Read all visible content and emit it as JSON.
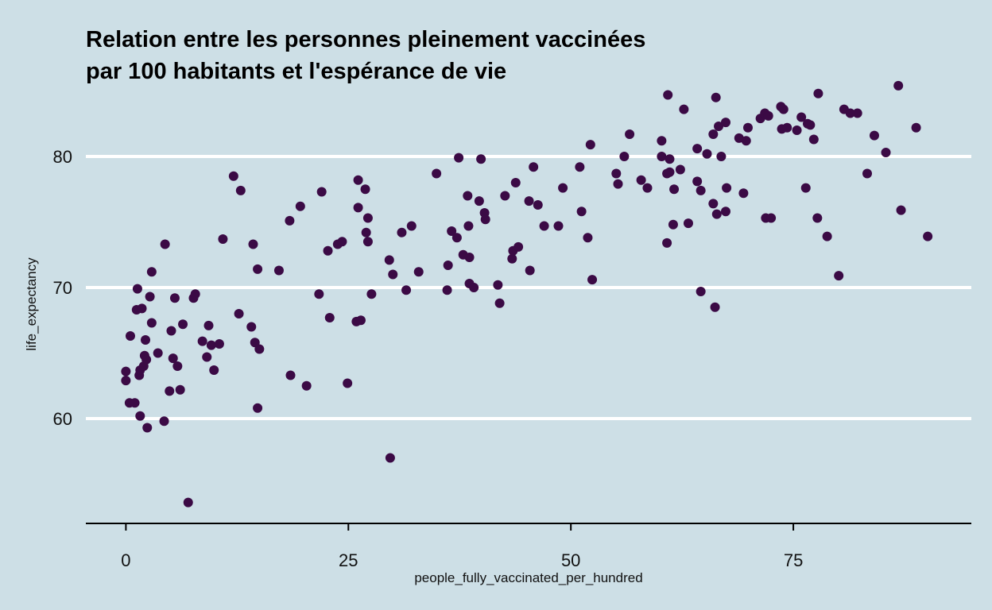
{
  "chart_data": {
    "type": "scatter",
    "title_lines": [
      "Relation entre les personnes pleinement vaccinées",
      "par 100 habitants et l'espérance de vie"
    ],
    "xlabel": "people_fully_vaccinated_per_hundred",
    "ylabel": "life_expectancy",
    "xlim": [
      -4.5,
      95
    ],
    "ylim": [
      52,
      86
    ],
    "x_ticks": [
      0,
      25,
      50,
      75
    ],
    "x_tick_labels": [
      "0",
      "25",
      "50",
      "75"
    ],
    "y_ticks": [
      60,
      70,
      80
    ],
    "y_tick_labels": [
      "60",
      "70",
      "80"
    ],
    "grid": "horizontal major lines",
    "legend": "none",
    "colors": {
      "background": "#cddfe6",
      "point": "#3b0a45",
      "grid": "#ffffff",
      "axis": "#000000"
    },
    "points": [
      [
        0.0,
        63.6
      ],
      [
        0.0,
        62.9
      ],
      [
        0.4,
        61.2
      ],
      [
        0.5,
        66.3
      ],
      [
        1.0,
        61.2
      ],
      [
        1.2,
        68.3
      ],
      [
        1.3,
        69.9
      ],
      [
        1.5,
        63.3
      ],
      [
        1.6,
        63.7
      ],
      [
        1.8,
        68.4
      ],
      [
        1.6,
        60.2
      ],
      [
        2.0,
        64.0
      ],
      [
        2.1,
        64.8
      ],
      [
        2.2,
        66.0
      ],
      [
        2.3,
        64.5
      ],
      [
        2.4,
        59.3
      ],
      [
        2.7,
        69.3
      ],
      [
        2.9,
        71.2
      ],
      [
        2.9,
        67.3
      ],
      [
        3.6,
        65.0
      ],
      [
        4.3,
        59.8
      ],
      [
        4.4,
        73.3
      ],
      [
        4.9,
        62.1
      ],
      [
        5.1,
        66.7
      ],
      [
        5.3,
        64.6
      ],
      [
        5.5,
        69.2
      ],
      [
        5.8,
        64.0
      ],
      [
        6.1,
        62.2
      ],
      [
        6.4,
        67.2
      ],
      [
        7.0,
        53.6
      ],
      [
        7.6,
        69.2
      ],
      [
        7.8,
        69.5
      ],
      [
        8.6,
        65.9
      ],
      [
        9.1,
        64.7
      ],
      [
        9.3,
        67.1
      ],
      [
        9.6,
        65.6
      ],
      [
        9.9,
        63.7
      ],
      [
        10.5,
        65.7
      ],
      [
        10.9,
        73.7
      ],
      [
        12.1,
        78.5
      ],
      [
        12.7,
        68.0
      ],
      [
        12.9,
        77.4
      ],
      [
        14.1,
        67.0
      ],
      [
        14.3,
        73.3
      ],
      [
        14.5,
        65.8
      ],
      [
        14.8,
        71.4
      ],
      [
        14.8,
        60.8
      ],
      [
        15.0,
        65.3
      ],
      [
        17.2,
        71.3
      ],
      [
        18.4,
        75.1
      ],
      [
        18.5,
        63.3
      ],
      [
        19.6,
        76.2
      ],
      [
        20.3,
        62.5
      ],
      [
        21.7,
        69.5
      ],
      [
        22.0,
        77.3
      ],
      [
        22.7,
        72.8
      ],
      [
        22.9,
        67.7
      ],
      [
        23.8,
        73.3
      ],
      [
        24.3,
        73.5
      ],
      [
        24.9,
        62.7
      ],
      [
        25.9,
        67.4
      ],
      [
        26.1,
        76.1
      ],
      [
        26.1,
        78.2
      ],
      [
        26.4,
        67.5
      ],
      [
        26.9,
        77.5
      ],
      [
        27.0,
        74.2
      ],
      [
        27.2,
        73.5
      ],
      [
        27.2,
        75.3
      ],
      [
        27.6,
        69.5
      ],
      [
        29.6,
        72.1
      ],
      [
        29.7,
        57.0
      ],
      [
        30.0,
        71.0
      ],
      [
        31.0,
        74.2
      ],
      [
        31.5,
        69.8
      ],
      [
        32.1,
        74.7
      ],
      [
        32.9,
        71.2
      ],
      [
        34.9,
        78.7
      ],
      [
        36.1,
        69.8
      ],
      [
        36.2,
        71.7
      ],
      [
        36.6,
        74.3
      ],
      [
        37.2,
        73.8
      ],
      [
        37.4,
        79.9
      ],
      [
        37.9,
        72.5
      ],
      [
        38.4,
        77.0
      ],
      [
        38.5,
        74.7
      ],
      [
        38.6,
        72.3
      ],
      [
        38.6,
        70.3
      ],
      [
        39.1,
        70.0
      ],
      [
        39.7,
        76.6
      ],
      [
        39.9,
        79.8
      ],
      [
        40.3,
        75.7
      ],
      [
        40.4,
        75.2
      ],
      [
        41.8,
        70.2
      ],
      [
        42.0,
        68.8
      ],
      [
        42.6,
        77.0
      ],
      [
        43.4,
        72.2
      ],
      [
        43.5,
        72.8
      ],
      [
        43.8,
        78.0
      ],
      [
        44.1,
        73.1
      ],
      [
        45.3,
        76.6
      ],
      [
        45.4,
        71.3
      ],
      [
        45.8,
        79.2
      ],
      [
        46.3,
        76.3
      ],
      [
        47.0,
        74.7
      ],
      [
        48.6,
        74.7
      ],
      [
        49.1,
        77.6
      ],
      [
        51.0,
        79.2
      ],
      [
        51.2,
        75.8
      ],
      [
        51.9,
        73.8
      ],
      [
        52.2,
        80.9
      ],
      [
        52.4,
        70.6
      ],
      [
        55.1,
        78.7
      ],
      [
        55.3,
        77.9
      ],
      [
        56.0,
        80.0
      ],
      [
        56.6,
        81.7
      ],
      [
        57.9,
        78.2
      ],
      [
        58.6,
        77.6
      ],
      [
        60.2,
        80.0
      ],
      [
        60.2,
        81.2
      ],
      [
        60.8,
        78.7
      ],
      [
        60.8,
        73.4
      ],
      [
        60.9,
        84.7
      ],
      [
        61.1,
        78.8
      ],
      [
        61.1,
        79.8
      ],
      [
        61.5,
        74.8
      ],
      [
        61.6,
        77.5
      ],
      [
        62.3,
        79.0
      ],
      [
        62.7,
        83.6
      ],
      [
        63.2,
        74.9
      ],
      [
        64.2,
        78.1
      ],
      [
        64.2,
        80.6
      ],
      [
        64.6,
        77.4
      ],
      [
        64.6,
        69.7
      ],
      [
        65.3,
        80.2
      ],
      [
        66.0,
        81.7
      ],
      [
        66.0,
        76.4
      ],
      [
        66.2,
        68.5
      ],
      [
        66.3,
        84.5
      ],
      [
        66.4,
        75.6
      ],
      [
        66.6,
        82.3
      ],
      [
        66.9,
        80.0
      ],
      [
        67.4,
        82.6
      ],
      [
        67.4,
        75.8
      ],
      [
        67.5,
        77.6
      ],
      [
        68.9,
        81.4
      ],
      [
        69.4,
        77.2
      ],
      [
        69.7,
        81.2
      ],
      [
        69.9,
        82.2
      ],
      [
        71.3,
        82.9
      ],
      [
        71.8,
        83.3
      ],
      [
        71.9,
        75.3
      ],
      [
        72.2,
        83.1
      ],
      [
        72.5,
        75.3
      ],
      [
        73.6,
        83.8
      ],
      [
        73.7,
        82.1
      ],
      [
        73.9,
        83.6
      ],
      [
        74.3,
        82.2
      ],
      [
        75.4,
        82.0
      ],
      [
        75.9,
        83.0
      ],
      [
        76.4,
        77.6
      ],
      [
        76.6,
        82.5
      ],
      [
        76.9,
        82.4
      ],
      [
        77.3,
        81.3
      ],
      [
        77.7,
        75.3
      ],
      [
        77.8,
        84.8
      ],
      [
        78.8,
        73.9
      ],
      [
        80.1,
        70.9
      ],
      [
        80.7,
        83.6
      ],
      [
        81.4,
        83.3
      ],
      [
        82.2,
        83.3
      ],
      [
        83.3,
        78.7
      ],
      [
        84.1,
        81.6
      ],
      [
        85.4,
        80.3
      ],
      [
        86.8,
        85.4
      ],
      [
        87.1,
        75.9
      ],
      [
        88.8,
        82.2
      ],
      [
        90.1,
        73.9
      ]
    ]
  }
}
